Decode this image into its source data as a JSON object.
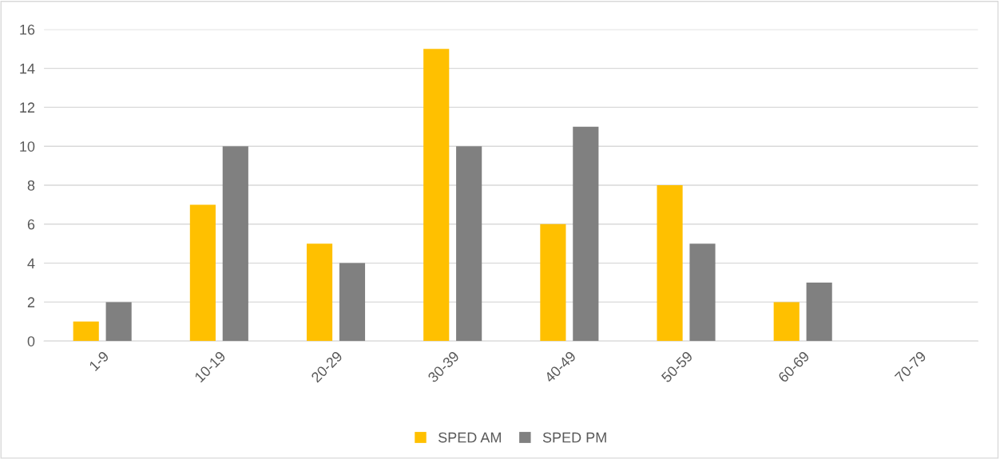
{
  "chart_data": {
    "type": "bar",
    "categories": [
      "1-9",
      "10-19",
      "20-29",
      "30-39",
      "40-49",
      "50-59",
      "60-69",
      "70-79"
    ],
    "series": [
      {
        "name": "SPED AM",
        "color": "#ffc000",
        "values": [
          1,
          7,
          5,
          15,
          6,
          8,
          2,
          0
        ]
      },
      {
        "name": "SPED PM",
        "color": "#808080",
        "values": [
          2,
          10,
          4,
          10,
          11,
          5,
          3,
          0
        ]
      }
    ],
    "ylim": [
      0,
      16
    ],
    "yticks": [
      0,
      2,
      4,
      6,
      8,
      10,
      12,
      14,
      16
    ],
    "grid": "y",
    "legend": "bottom"
  }
}
